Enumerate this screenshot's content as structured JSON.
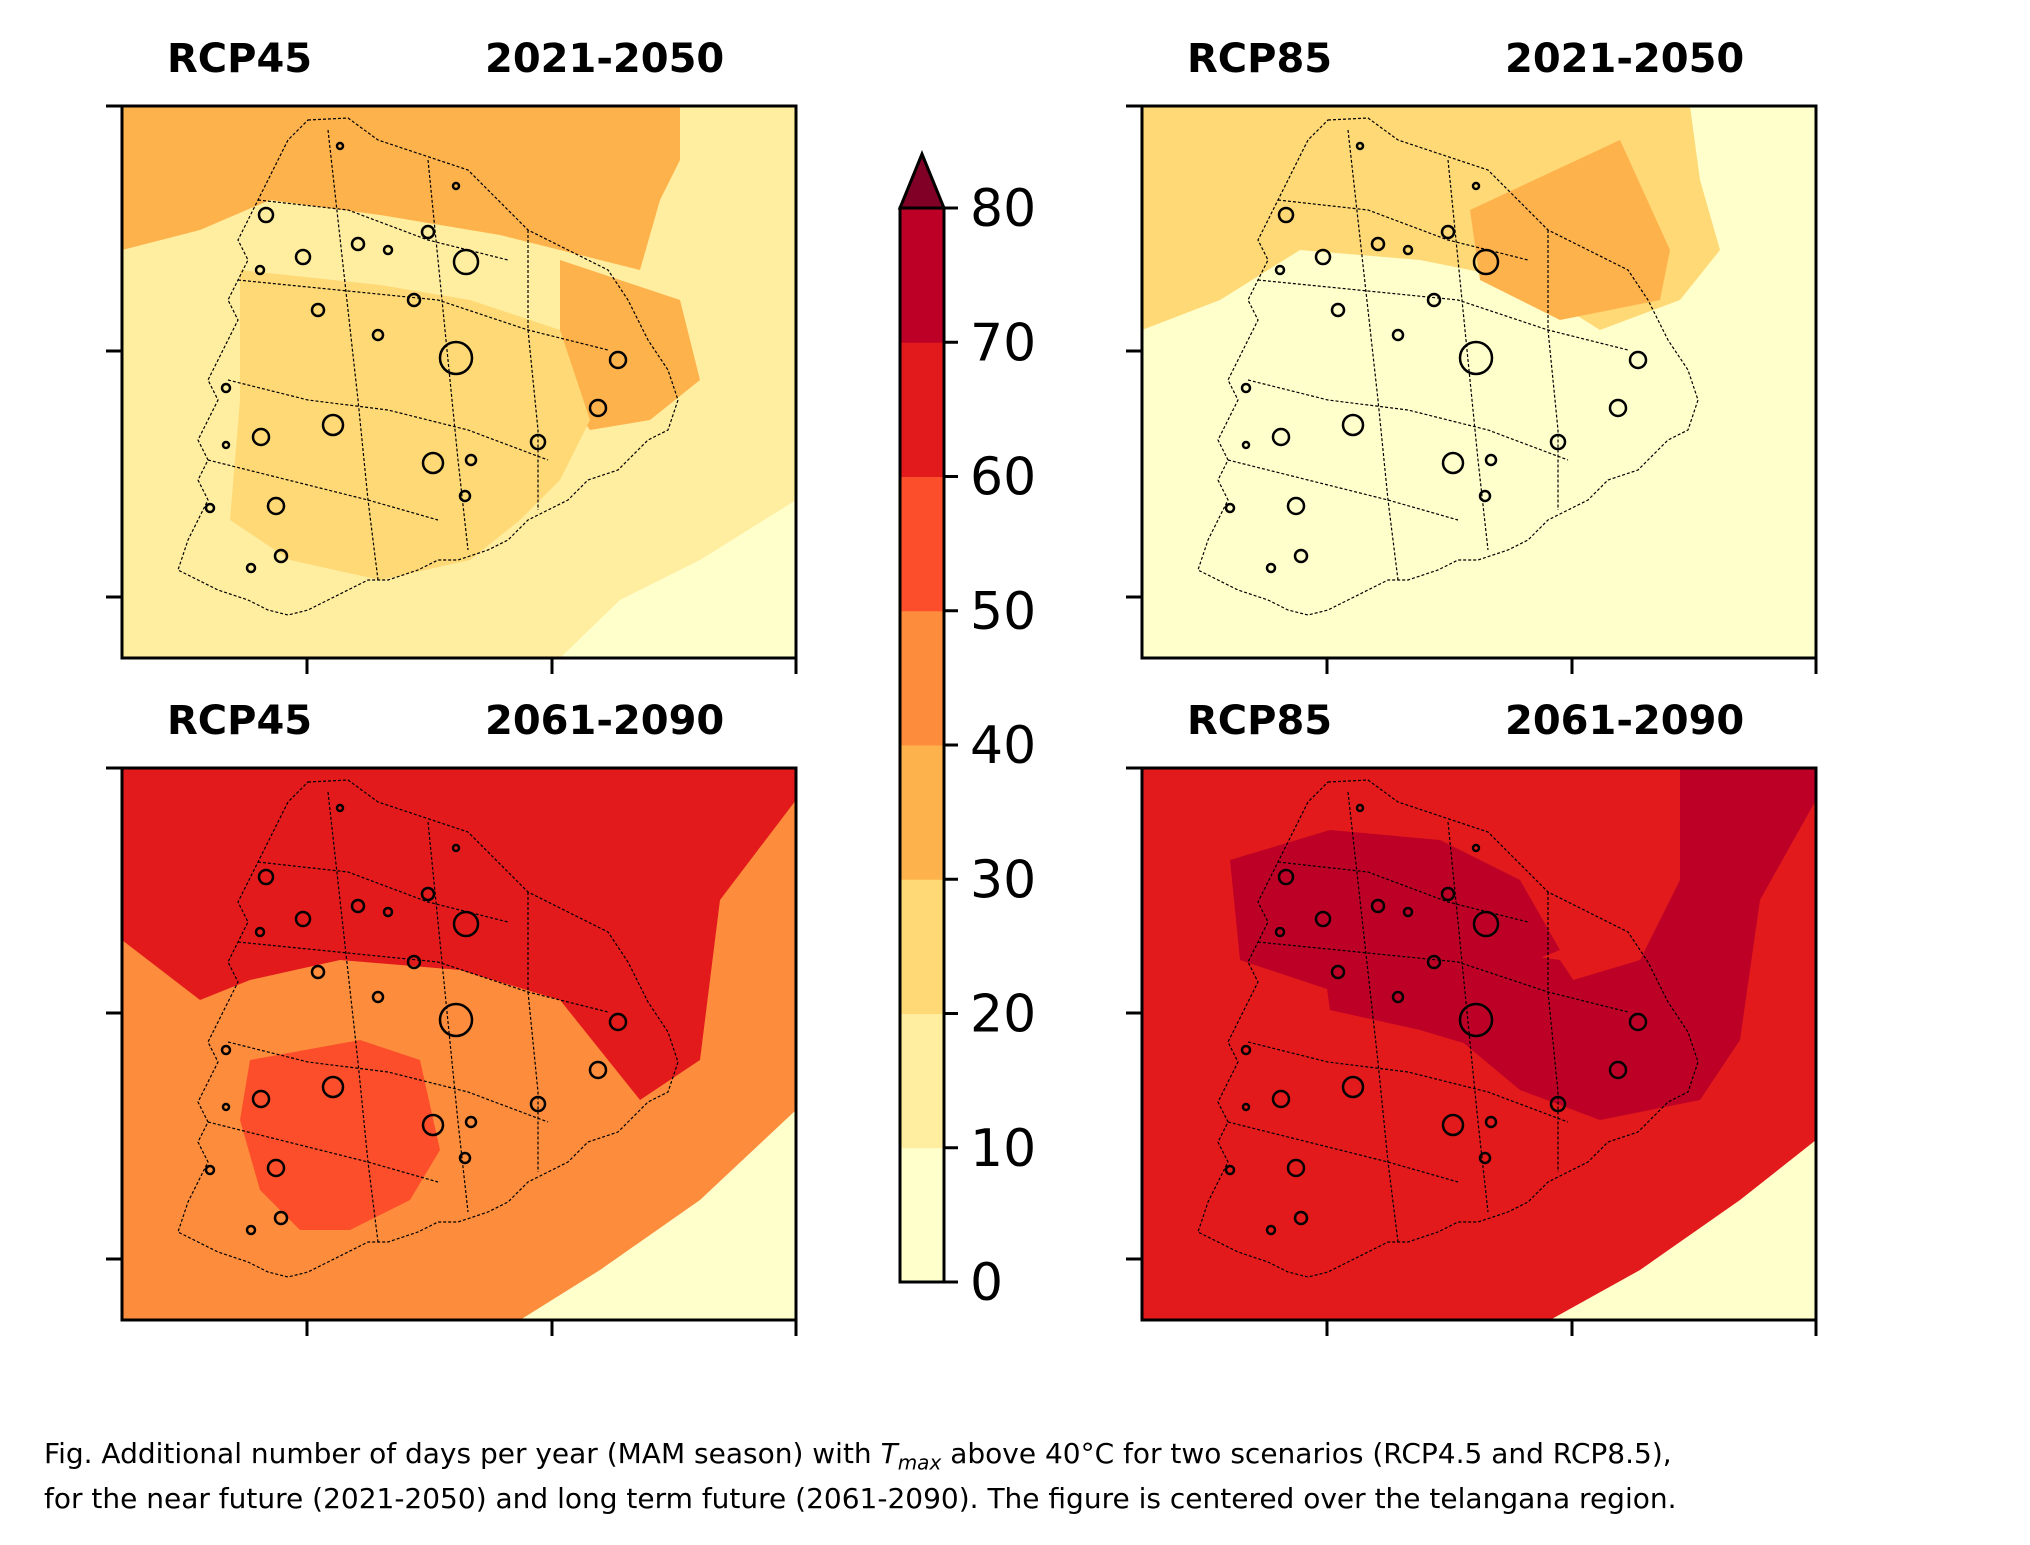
{
  "colormap": {
    "levels": [
      0,
      10,
      20,
      30,
      40,
      50,
      60,
      70,
      80
    ],
    "colors": [
      "#ffffcc",
      "#ffeda0",
      "#fed976",
      "#feb24c",
      "#fd8d3c",
      "#fc4e2a",
      "#e31a1c",
      "#bd0026"
    ],
    "over_color": "#800026",
    "tick_labels": [
      "0",
      "10",
      "20",
      "30",
      "40",
      "50",
      "60",
      "70",
      "80"
    ]
  },
  "panels": [
    {
      "scenario": "RCP45",
      "period": "2021-2050",
      "level_index": {
        "background": 1,
        "north": 3,
        "center": 2,
        "east": 3,
        "southeast": 0
      }
    },
    {
      "scenario": "RCP85",
      "period": "2021-2050",
      "level_index": {
        "background": 0,
        "north": 2,
        "center": 0,
        "east": 3,
        "southeast": 0
      }
    },
    {
      "scenario": "RCP45",
      "period": "2061-2090",
      "level_index": {
        "background": 4,
        "north": 6,
        "center": 5,
        "east": 6,
        "southeast": 0
      }
    },
    {
      "scenario": "RCP85",
      "period": "2061-2090",
      "level_index": {
        "background": 6,
        "north": 7,
        "center": 7,
        "east": 7,
        "southeast": 0
      }
    }
  ],
  "caption": {
    "line1_prefix": "Fig. Additional number of days per year (MAM season) with",
    "tmax_T": "T",
    "tmax_sub": "max",
    "line1_suffix": "above 40°C for two scenarios (RCP4.5 and RCP8.5),",
    "line2": "for the near future (2021-2050) and long term future (2061-2090). The figure is centered over the telangana region."
  }
}
